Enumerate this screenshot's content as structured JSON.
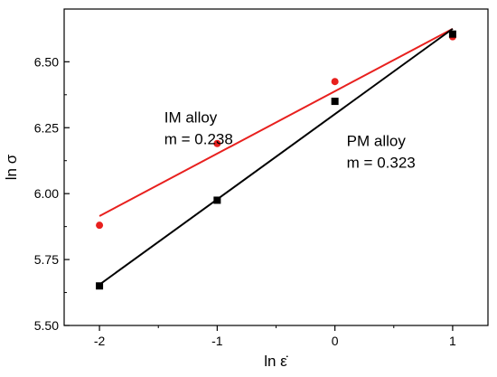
{
  "chart_data": {
    "type": "scatter",
    "title": "",
    "xlabel": "ln ε̇",
    "ylabel": "ln σ",
    "xlim": [
      -2.3,
      1.3
    ],
    "ylim": [
      5.5,
      6.7
    ],
    "x_ticks": [
      -2,
      -1,
      0,
      1
    ],
    "x_tick_labels": [
      "-2",
      "-1",
      "0",
      "1"
    ],
    "y_ticks": [
      5.5,
      5.75,
      6.0,
      6.25,
      6.5
    ],
    "y_tick_labels": [
      "5.50",
      "5.75",
      "6.00",
      "6.25",
      "6.50"
    ],
    "grid": false,
    "legend": "none",
    "series": [
      {
        "marker": "circle",
        "color": "#e8201e",
        "x": [
          -2,
          -1,
          0,
          1
        ],
        "y": [
          5.88,
          6.19,
          6.425,
          6.595
        ],
        "fit": {
          "x": [
            -2,
            1
          ],
          "y": [
            5.915,
            6.625
          ]
        }
      },
      {
        "marker": "square",
        "color": "#000000",
        "x": [
          -2,
          -1,
          0,
          1
        ],
        "y": [
          5.65,
          5.975,
          6.35,
          6.605
        ],
        "fit": {
          "x": [
            -2,
            1
          ],
          "y": [
            5.655,
            6.625
          ]
        }
      }
    ],
    "annotations": [
      {
        "lines": [
          "IM alloy",
          "m = 0.238"
        ],
        "at": [
          -1.45,
          6.27
        ]
      },
      {
        "lines": [
          "PM alloy",
          "m = 0.323"
        ],
        "at": [
          0.1,
          6.18
        ]
      }
    ]
  }
}
